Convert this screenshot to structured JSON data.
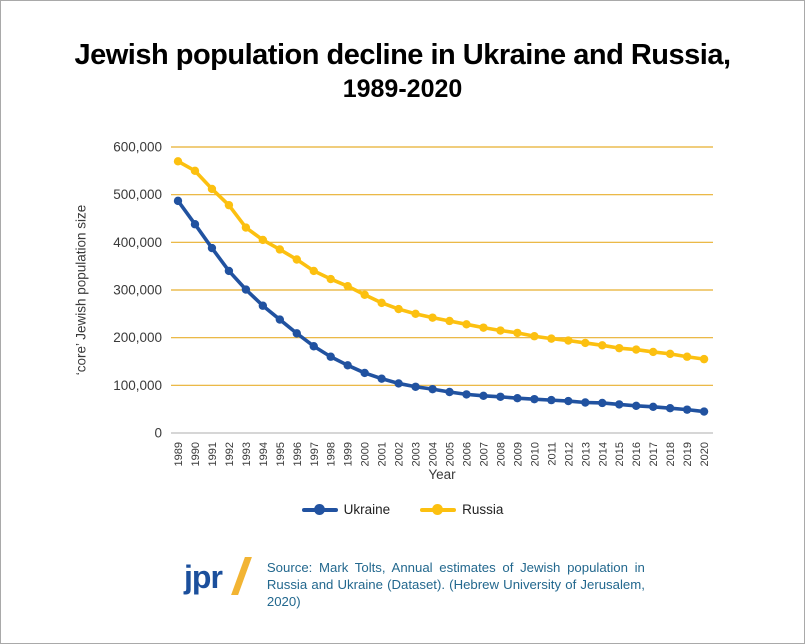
{
  "title": {
    "line1": "Jewish population decline in Ukraine and Russia,",
    "line2": "1989-2020"
  },
  "chart_data": {
    "type": "line",
    "title": "Jewish population decline in Ukraine and Russia, 1989-2020",
    "xlabel": "Year",
    "ylabel": "‘core’ Jewish population size",
    "ylim": [
      0,
      600000
    ],
    "grid": "horizontal",
    "legend_position": "bottom",
    "categories": [
      "1989",
      "1990",
      "1991",
      "1992",
      "1993",
      "1994",
      "1995",
      "1996",
      "1997",
      "1998",
      "1999",
      "2000",
      "2001",
      "2002",
      "2003",
      "2004",
      "2005",
      "2006",
      "2007",
      "2008",
      "2009",
      "2010",
      "2011",
      "2012",
      "2013",
      "2014",
      "2015",
      "2016",
      "2017",
      "2018",
      "2019",
      "2020"
    ],
    "yticks": [
      {
        "value": 0,
        "label": "0"
      },
      {
        "value": 100000,
        "label": "100,000"
      },
      {
        "value": 200000,
        "label": "200,000"
      },
      {
        "value": 300000,
        "label": "300,000"
      },
      {
        "value": 400000,
        "label": "400,000"
      },
      {
        "value": 500000,
        "label": "500,000"
      },
      {
        "value": 600000,
        "label": "600,000"
      }
    ],
    "series": [
      {
        "name": "Ukraine",
        "color": "#2152a0",
        "marker": "circle",
        "values": [
          487000,
          438000,
          388000,
          340000,
          301000,
          267000,
          238000,
          209000,
          182000,
          160000,
          142000,
          126000,
          114000,
          104000,
          97000,
          92000,
          86000,
          81000,
          78000,
          76000,
          73000,
          71000,
          69000,
          67000,
          64000,
          63000,
          60000,
          57000,
          55000,
          52000,
          49000,
          45000
        ]
      },
      {
        "name": "Russia",
        "color": "#fcc010",
        "marker": "circle",
        "values": [
          570000,
          550000,
          512000,
          478000,
          431000,
          405000,
          385000,
          364000,
          340000,
          323000,
          308000,
          290000,
          273000,
          260000,
          250000,
          242000,
          235000,
          228000,
          221000,
          215000,
          210000,
          203000,
          198000,
          194000,
          189000,
          184000,
          178000,
          175000,
          170000,
          166000,
          160000,
          155000
        ]
      }
    ]
  },
  "legend": [
    {
      "label": "Ukraine",
      "color": "#2152a0"
    },
    {
      "label": "Russia",
      "color": "#fcc010"
    }
  ],
  "footer": {
    "logo_text": "jpr",
    "source_text": "Source: Mark Tolts, Annual estimates of Jewish population in Russia and Ukraine (Dataset). (Hebrew University of Jerusalem, 2020)"
  },
  "colors": {
    "ukraine_line": "#2152a0",
    "russia_line": "#fcc010",
    "gridline": "#e8af2e",
    "zero_line": "#c8c8c8",
    "title_text": "#000000",
    "axis_text": "#3a3a3a",
    "source_text": "#23688e",
    "jpr_blue": "#1b4f9c",
    "jpr_gold": "#f2b433"
  }
}
